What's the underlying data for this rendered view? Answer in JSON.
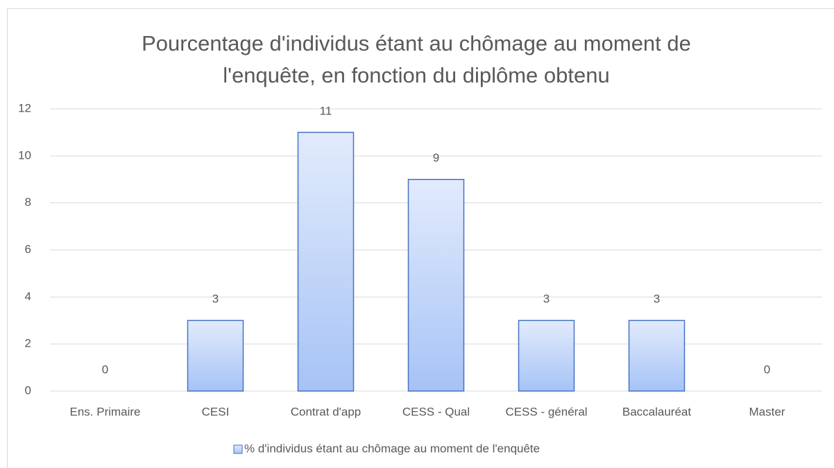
{
  "chart_data": {
    "type": "bar",
    "title": "Pourcentage d'individus étant au chômage au moment de l'enquête, en fonction du diplôme obtenu",
    "categories": [
      "Ens. Primaire",
      "CESI",
      "Contrat d'app",
      "CESS - Qual",
      "CESS - général",
      "Baccalauréat",
      "Master"
    ],
    "series": [
      {
        "name": "% d'individus étant au chômage au moment de l'enquête",
        "color": "#4472c4",
        "values": [
          0,
          3,
          11,
          9,
          3,
          3,
          0
        ]
      }
    ],
    "ylim": [
      0,
      12
    ],
    "yticks": [
      0,
      2,
      4,
      6,
      8,
      10,
      12
    ],
    "grid": true,
    "legend": "bottom",
    "data_labels": true
  }
}
